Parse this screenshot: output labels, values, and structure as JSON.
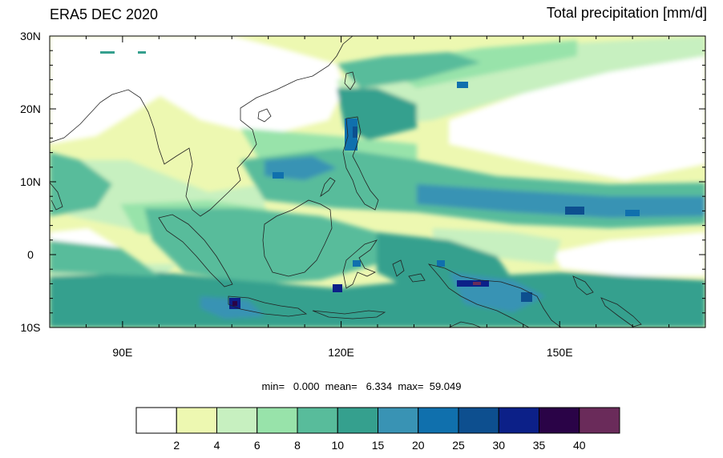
{
  "header": {
    "left_title": "ERA5 DEC 2020",
    "right_title": "Total precipitation [mm/d]"
  },
  "map": {
    "lon_range": [
      80,
      170
    ],
    "lat_range": [
      -10,
      30
    ],
    "lat_ticks": [
      {
        "value": 30,
        "label": "30N"
      },
      {
        "value": 20,
        "label": "20N"
      },
      {
        "value": 10,
        "label": "10N"
      },
      {
        "value": 0,
        "label": "0"
      },
      {
        "value": -10,
        "label": "10S"
      }
    ],
    "lon_ticks": [
      {
        "value": 90,
        "label": "90E"
      },
      {
        "value": 120,
        "label": "120E"
      },
      {
        "value": 150,
        "label": "150E"
      }
    ]
  },
  "stats": {
    "text": "min=   0.000  mean=   6.334  max=  59.049"
  },
  "colorbar": {
    "colors": [
      "#ffffff",
      "#edf8b1",
      "#c7f0c0",
      "#98e3aa",
      "#58bc9b",
      "#35a08e",
      "#3993b4",
      "#1070ad",
      "#0d4f8f",
      "#0c2088",
      "#2a0347",
      "#6a2b5a"
    ],
    "labels": [
      "2",
      "4",
      "6",
      "8",
      "10",
      "15",
      "20",
      "25",
      "30",
      "35",
      "40"
    ]
  }
}
